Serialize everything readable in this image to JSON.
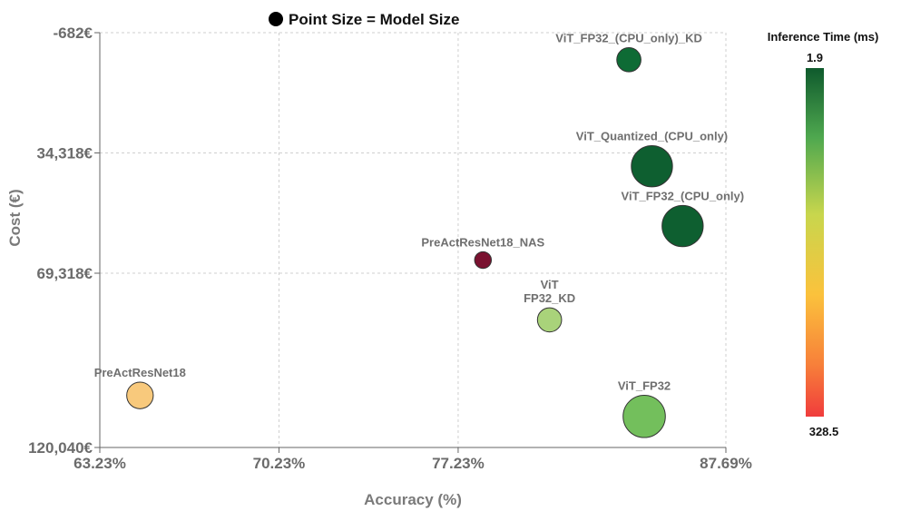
{
  "chart_data": {
    "type": "scatter",
    "legend_note": "Point Size = Model Size",
    "xlabel": "Accuracy (%)",
    "ylabel": "Cost (€)",
    "xlim": [
      63.23,
      87.69
    ],
    "ylim": [
      120040,
      -682
    ],
    "x_tick_labels": [
      "63.23%",
      "70.23%",
      "77.23%",
      "87.69%"
    ],
    "x_ticks": [
      63.23,
      70.23,
      77.23,
      87.69
    ],
    "y_tick_labels": [
      "-682€",
      "34,318€",
      "69,318€",
      "120,040€"
    ],
    "y_ticks": [
      -682,
      34318,
      69318,
      120040
    ],
    "grid": true,
    "colorbar": {
      "title": "Inference Time (ms)",
      "min_label": "1.9",
      "max_label": "328.5",
      "min": 1.9,
      "max": 328.5
    },
    "points": [
      {
        "label": "ViT_FP32_(CPU_only)_KD",
        "x": 83.9,
        "y": 7200,
        "size": 0.22,
        "color": "#0e6b35"
      },
      {
        "label": "ViT_Quantized_(CPU_only)",
        "x": 84.8,
        "y": 38200,
        "size": 0.8,
        "color": "#0e5f30"
      },
      {
        "label": "ViT_FP32_(CPU_only)",
        "x": 86.0,
        "y": 55600,
        "size": 0.8,
        "color": "#0e5f30"
      },
      {
        "label": "PreActResNet18_NAS",
        "x": 78.2,
        "y": 65500,
        "size": 0.08,
        "color": "#7a1230"
      },
      {
        "label": "ViT\nFP32_KD",
        "x": 80.8,
        "y": 82900,
        "size": 0.22,
        "color": "#a9d37a"
      },
      {
        "label": "PreActResNet18",
        "x": 64.8,
        "y": 104900,
        "size": 0.28,
        "color": "#f8c97c"
      },
      {
        "label": "ViT_FP32",
        "x": 84.5,
        "y": 111000,
        "size": 0.85,
        "color": "#73bf5c"
      }
    ]
  }
}
